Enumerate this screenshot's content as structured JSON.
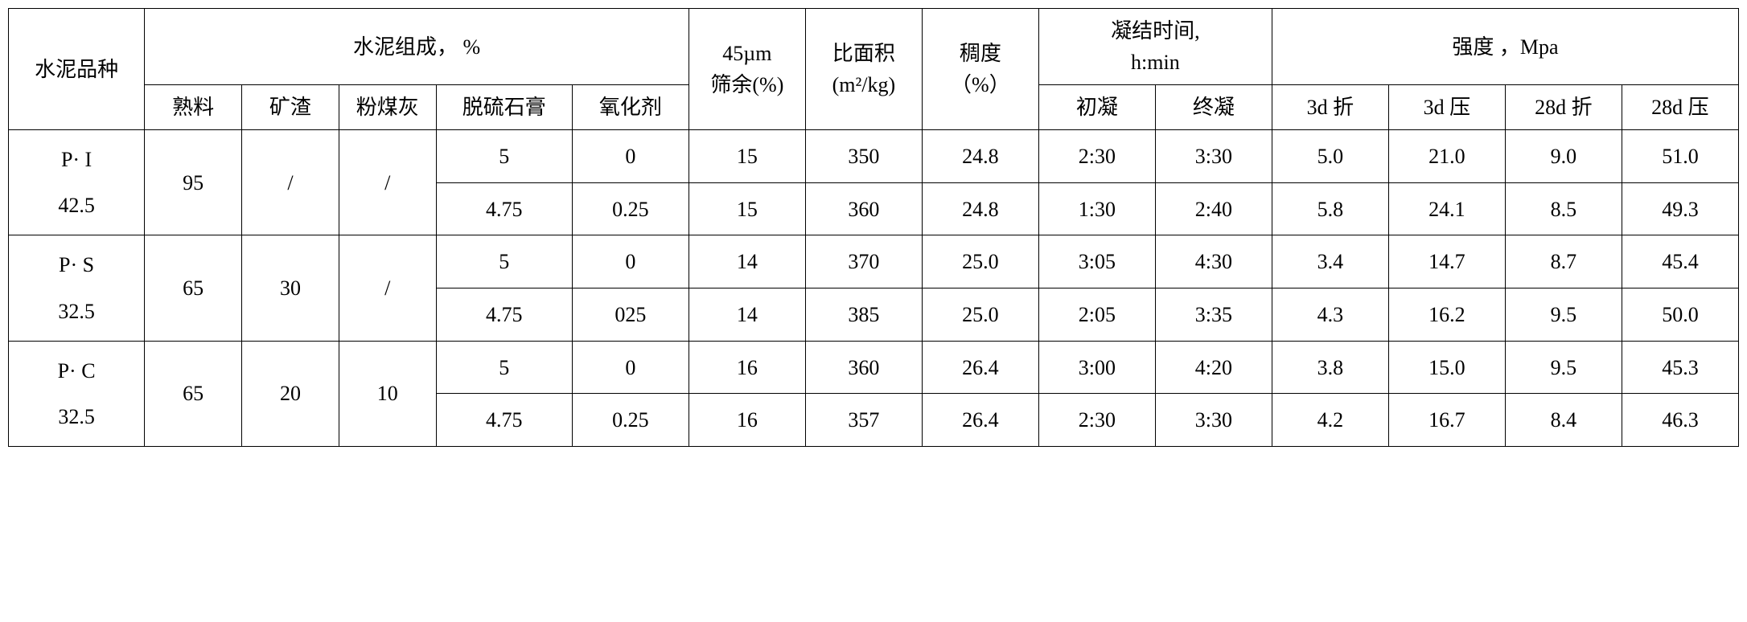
{
  "type": "table",
  "background_color": "#ffffff",
  "border_color": "#000000",
  "font_family": "SimSun",
  "font_size": 26,
  "headers": {
    "c0": "水泥品种",
    "composition_group": "水泥组成，   %",
    "c1": "熟料",
    "c2": "矿渣",
    "c3": "粉煤灰",
    "c4": "脱硫石膏",
    "c5": "氧化剂",
    "c6_a": "45µm",
    "c6_b": "筛余(%)",
    "c7_a": "比面积",
    "c7_b": "(m²/kg)",
    "c8_a": "稠度",
    "c8_b": "（%）",
    "setting_group_a": "凝结时间,",
    "setting_group_b": "h:min",
    "c9": "初凝",
    "c10": "终凝",
    "strength_group": "强度 ，Mpa",
    "c11": "3d 折",
    "c12": "3d 压",
    "c13": "28d 折",
    "c14": "28d 压"
  },
  "groups": [
    {
      "type_a": "P· I",
      "type_b": "42.5",
      "clinker": "95",
      "slag": "/",
      "flyash": "/",
      "rows": [
        {
          "gypsum": "5",
          "oxid": "0",
          "residue": "15",
          "area": "350",
          "consist": "24.8",
          "init": "2:30",
          "final": "3:30",
          "f3": "5.0",
          "c3": "21.0",
          "f28": "9.0",
          "c28": "51.0"
        },
        {
          "gypsum": "4.75",
          "oxid": "0.25",
          "residue": "15",
          "area": "360",
          "consist": "24.8",
          "init": "1:30",
          "final": "2:40",
          "f3": "5.8",
          "c3": "24.1",
          "f28": "8.5",
          "c28": "49.3"
        }
      ]
    },
    {
      "type_a": "P· S",
      "type_b": "32.5",
      "clinker": "65",
      "slag": "30",
      "flyash": "/",
      "rows": [
        {
          "gypsum": "5",
          "oxid": "0",
          "residue": "14",
          "area": "370",
          "consist": "25.0",
          "init": "3:05",
          "final": "4:30",
          "f3": "3.4",
          "c3": "14.7",
          "f28": "8.7",
          "c28": "45.4"
        },
        {
          "gypsum": "4.75",
          "oxid": "025",
          "residue": "14",
          "area": "385",
          "consist": "25.0",
          "init": "2:05",
          "final": "3:35",
          "f3": "4.3",
          "c3": "16.2",
          "f28": "9.5",
          "c28": "50.0"
        }
      ]
    },
    {
      "type_a": "P· C",
      "type_b": "32.5",
      "clinker": "65",
      "slag": "20",
      "flyash": "10",
      "rows": [
        {
          "gypsum": "5",
          "oxid": "0",
          "residue": "16",
          "area": "360",
          "consist": "26.4",
          "init": "3:00",
          "final": "4:20",
          "f3": "3.8",
          "c3": "15.0",
          "f28": "9.5",
          "c28": "45.3"
        },
        {
          "gypsum": "4.75",
          "oxid": "0.25",
          "residue": "16",
          "area": "357",
          "consist": "26.4",
          "init": "2:30",
          "final": "3:30",
          "f3": "4.2",
          "c3": "16.7",
          "f28": "8.4",
          "c28": "46.3"
        }
      ]
    }
  ]
}
